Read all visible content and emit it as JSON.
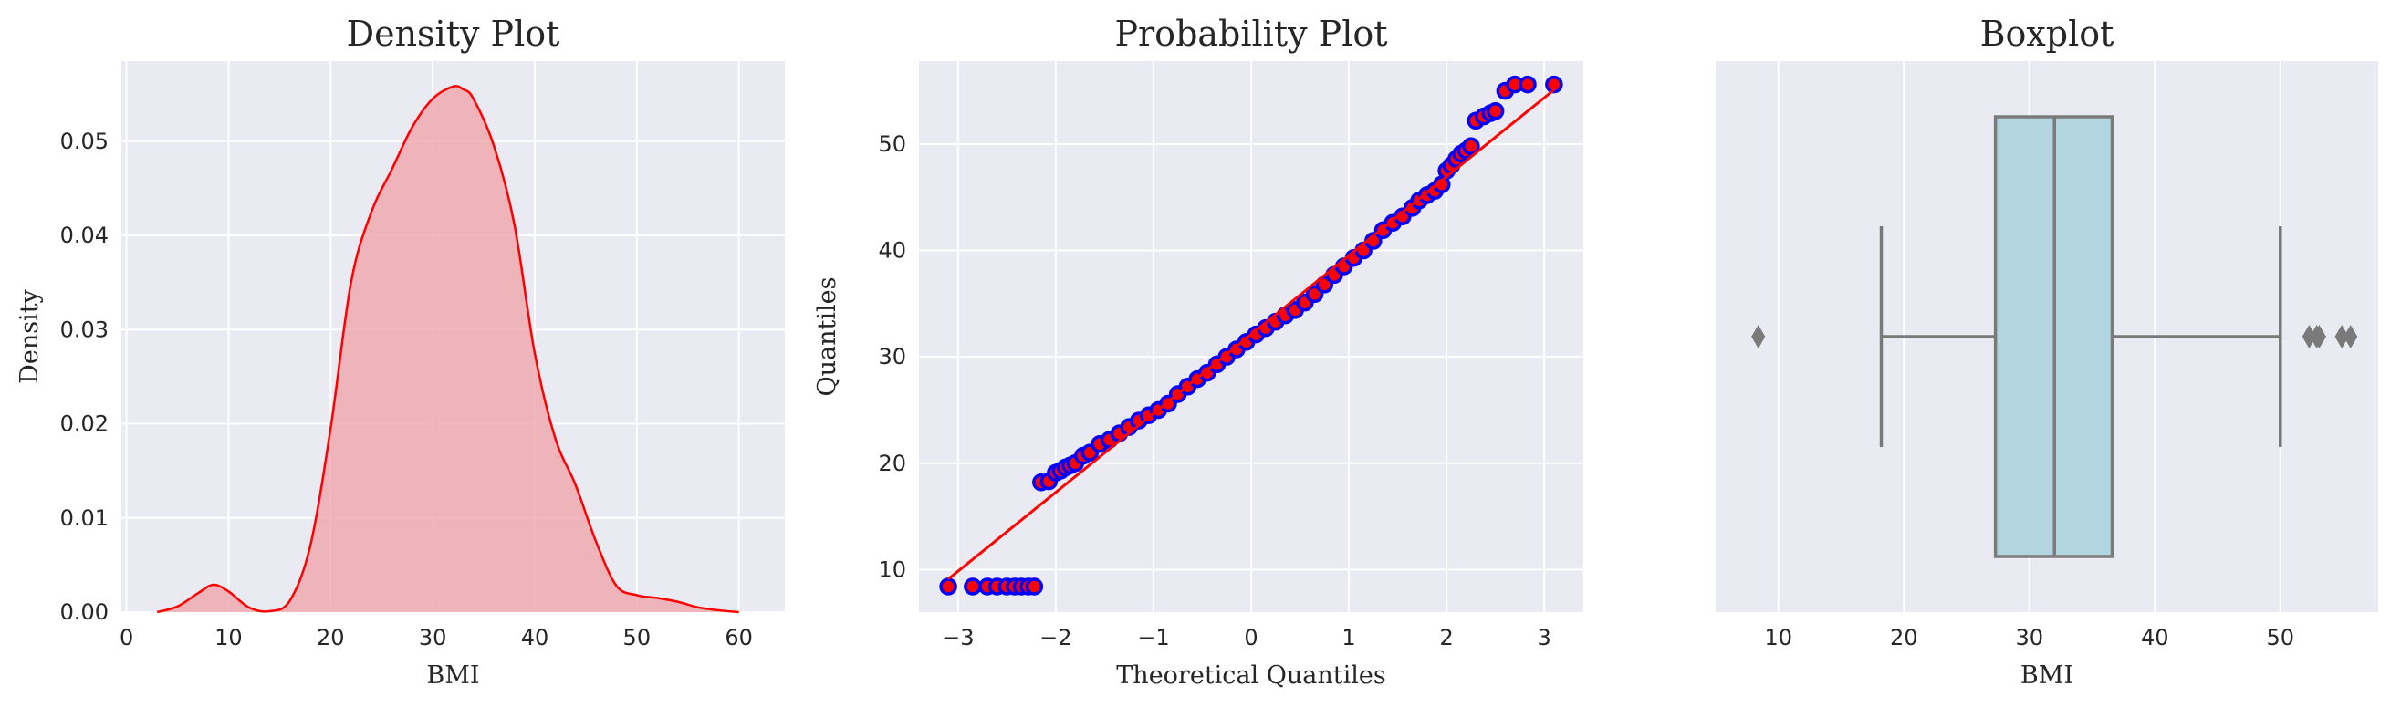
{
  "chart_data": [
    {
      "type": "area",
      "title": "Density Plot",
      "xlabel": "BMI",
      "ylabel": "Density",
      "xlim": [
        -0.5,
        64.5
      ],
      "ylim": [
        0,
        0.0585
      ],
      "xticks": [
        "0",
        "10",
        "20",
        "30",
        "40",
        "50",
        "60"
      ],
      "yticks": [
        "0.00",
        "0.01",
        "0.02",
        "0.03",
        "0.04",
        "0.05"
      ],
      "grid": true,
      "series": [
        {
          "x": [
            3,
            5,
            7,
            8.5,
            10,
            12,
            14,
            16,
            18,
            20,
            22,
            24,
            26,
            28,
            30,
            32,
            33,
            34,
            36,
            38,
            40,
            42,
            44,
            46,
            48,
            50,
            52,
            54,
            56,
            58,
            60
          ],
          "y": [
            0.0,
            0.0006,
            0.002,
            0.0029,
            0.0022,
            0.0005,
            0.0001,
            0.0012,
            0.007,
            0.0195,
            0.035,
            0.0425,
            0.047,
            0.0515,
            0.0545,
            0.0558,
            0.0555,
            0.0545,
            0.0495,
            0.0412,
            0.0275,
            0.0185,
            0.0135,
            0.0075,
            0.0028,
            0.0018,
            0.0015,
            0.0011,
            0.0005,
            0.0002,
            0.0
          ],
          "values_color": "#ff0000",
          "fill_color": "#f0a9b0"
        }
      ]
    },
    {
      "type": "scatter",
      "title": "Probability Plot",
      "xlabel": "Theoretical Quantiles",
      "ylabel": "Quantiles",
      "xlim": [
        -3.4,
        3.4
      ],
      "ylim": [
        6.0,
        57.8
      ],
      "xticks": [
        "−3",
        "−2",
        "−1",
        "0",
        "1",
        "2",
        "3"
      ],
      "yticks": [
        "10",
        "20",
        "30",
        "40",
        "50"
      ],
      "grid": true,
      "fit_line": {
        "x": [
          -3.1,
          3.1
        ],
        "y": [
          9.1,
          55.1
        ],
        "color": "#ff0000"
      },
      "series": [
        {
          "marker_face": "#ff0000",
          "marker_edge": "#0000ff",
          "points": [
            [
              -3.1,
              8.4
            ],
            [
              -2.85,
              8.4
            ],
            [
              -2.7,
              8.4
            ],
            [
              -2.6,
              8.4
            ],
            [
              -2.5,
              8.4
            ],
            [
              -2.42,
              8.4
            ],
            [
              -2.35,
              8.4
            ],
            [
              -2.28,
              8.4
            ],
            [
              -2.22,
              8.4
            ],
            [
              -2.15,
              18.2
            ],
            [
              -2.07,
              18.3
            ],
            [
              -2.0,
              19.1
            ],
            [
              -1.95,
              19.3
            ],
            [
              -1.9,
              19.6
            ],
            [
              -1.85,
              19.8
            ],
            [
              -1.8,
              20.0
            ],
            [
              -1.72,
              20.7
            ],
            [
              -1.65,
              21.0
            ],
            [
              -1.55,
              21.8
            ],
            [
              -1.45,
              22.2
            ],
            [
              -1.35,
              22.8
            ],
            [
              -1.25,
              23.4
            ],
            [
              -1.15,
              24.0
            ],
            [
              -1.05,
              24.5
            ],
            [
              -0.95,
              25.0
            ],
            [
              -0.85,
              25.6
            ],
            [
              -0.75,
              26.5
            ],
            [
              -0.65,
              27.2
            ],
            [
              -0.55,
              27.9
            ],
            [
              -0.45,
              28.5
            ],
            [
              -0.35,
              29.3
            ],
            [
              -0.25,
              30.0
            ],
            [
              -0.15,
              30.7
            ],
            [
              -0.05,
              31.4
            ],
            [
              0.05,
              32.1
            ],
            [
              0.15,
              32.7
            ],
            [
              0.25,
              33.3
            ],
            [
              0.35,
              33.9
            ],
            [
              0.45,
              34.4
            ],
            [
              0.55,
              35.1
            ],
            [
              0.65,
              35.9
            ],
            [
              0.75,
              36.8
            ],
            [
              0.85,
              37.7
            ],
            [
              0.95,
              38.5
            ],
            [
              1.05,
              39.3
            ],
            [
              1.15,
              40.0
            ],
            [
              1.25,
              40.9
            ],
            [
              1.35,
              41.9
            ],
            [
              1.45,
              42.6
            ],
            [
              1.55,
              43.2
            ],
            [
              1.65,
              44.0
            ],
            [
              1.72,
              44.7
            ],
            [
              1.8,
              45.2
            ],
            [
              1.88,
              45.6
            ],
            [
              1.95,
              46.2
            ],
            [
              2.0,
              47.5
            ],
            [
              2.05,
              48.0
            ],
            [
              2.1,
              48.6
            ],
            [
              2.15,
              49.1
            ],
            [
              2.2,
              49.4
            ],
            [
              2.25,
              49.8
            ],
            [
              2.3,
              52.2
            ],
            [
              2.38,
              52.6
            ],
            [
              2.45,
              52.9
            ],
            [
              2.5,
              53.1
            ],
            [
              2.6,
              55.0
            ],
            [
              2.7,
              55.6
            ],
            [
              2.83,
              55.6
            ],
            [
              3.1,
              55.6
            ]
          ]
        }
      ]
    },
    {
      "type": "boxplot",
      "title": "Boxplot",
      "xlabel": "BMI",
      "ylabel": "",
      "xlim": [
        5.0,
        57.8
      ],
      "xticks": [
        "10",
        "20",
        "30",
        "40",
        "50"
      ],
      "grid": true,
      "box": {
        "whisker_low": 18.2,
        "q1": 27.3,
        "median": 32.0,
        "q3": 36.6,
        "whisker_high": 50.0,
        "outliers": [
          8.4,
          52.3,
          52.9,
          53.1,
          54.9,
          55.6
        ],
        "fill_color": "#b3d5df",
        "line_color": "#7a7a7a"
      }
    }
  ]
}
